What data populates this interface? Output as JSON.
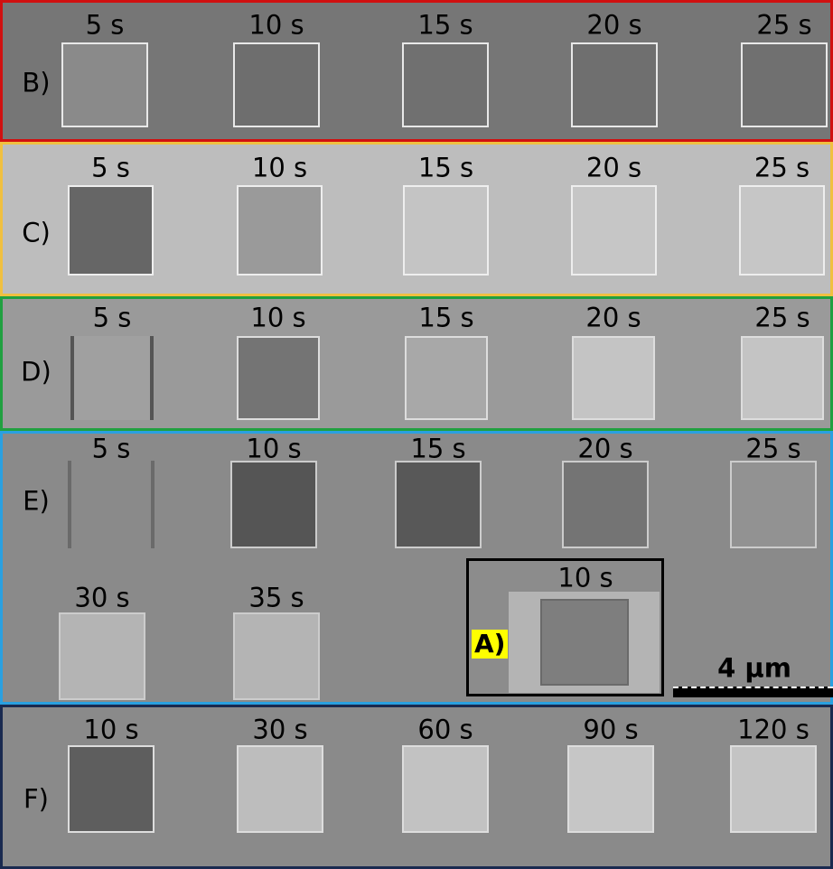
{
  "panels": [
    {
      "label": "B)",
      "times": [
        "5 s",
        "10 s",
        "15 s",
        "20 s",
        "25 s"
      ]
    },
    {
      "label": "C)",
      "times": [
        "5 s",
        "10 s",
        "15 s",
        "20 s",
        "25 s"
      ]
    },
    {
      "label": "D)",
      "times": [
        "5 s",
        "10 s",
        "15 s",
        "20 s",
        "25 s"
      ]
    },
    {
      "label": "E)",
      "times": [
        "5 s",
        "10 s",
        "15 s",
        "20 s",
        "25 s",
        "30 s",
        "35 s"
      ]
    },
    {
      "label": "F)",
      "times": [
        "10 s",
        "30 s",
        "60 s",
        "90 s",
        "120 s"
      ]
    }
  ],
  "inset": {
    "label": "A)",
    "time": "10 s"
  },
  "scale_bar": "4 µm"
}
